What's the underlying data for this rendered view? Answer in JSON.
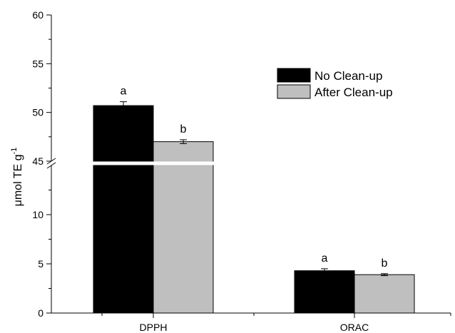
{
  "chart_data": {
    "type": "bar",
    "categories": [
      "DPPH",
      "ORAC"
    ],
    "series": [
      {
        "name": "No Clean-up",
        "values": [
          50.7,
          4.3
        ],
        "errors": [
          0.4,
          0.2
        ],
        "color": "#000000",
        "sig": [
          "a",
          "a"
        ]
      },
      {
        "name": "After Clean-up",
        "values": [
          47.0,
          3.9
        ],
        "errors": [
          0.2,
          0.1
        ],
        "color": "#bfbfbf",
        "sig": [
          "b",
          "b"
        ]
      }
    ],
    "ylabel": "μmol TE g",
    "ylabel_sup": "-1",
    "ylim": [
      0,
      60
    ],
    "axis_break": [
      15,
      45
    ],
    "lower_segment": {
      "range": [
        0,
        15
      ],
      "ticks": [
        0,
        5,
        10
      ]
    },
    "upper_segment": {
      "range": [
        45,
        60
      ],
      "ticks": [
        45,
        50,
        55,
        60
      ]
    },
    "legend_position": "top-right",
    "grid": false
  }
}
